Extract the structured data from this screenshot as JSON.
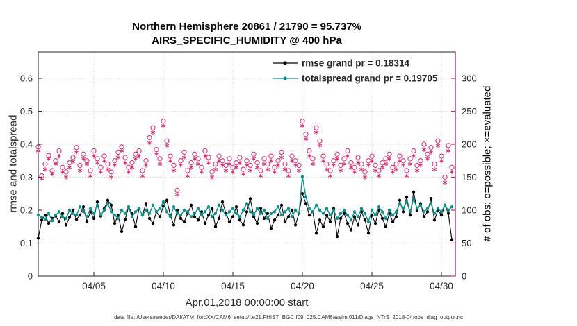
{
  "title": {
    "line1": "Northern Hemisphere 20861 / 21790 = 95.737%",
    "line2": "AIRS_SPECIFIC_HUMIDITY @ 400 hPa"
  },
  "footer": {
    "data_file": "data file: /Users/raeder/DAI/ATM_forcXX/CAM6_setup/f.e21.FHIST_BGC.f09_025.CAM6assim.011/Diags_NTrS_2018-04/obs_diag_output.nc"
  },
  "colors": {
    "obs_pink": "#d02670",
    "spread_teal": "#0f8f8a",
    "rmse_black": "#000000",
    "legend_rmse_text": "#0000ee",
    "grid": "#d8d8d8",
    "axis": "#262626"
  },
  "chart_data": {
    "type": "line",
    "title": "Northern Hemisphere 20861 / 21790 = 95.737%",
    "subtitle": "AIRS_SPECIFIC_HUMIDITY @ 400 hPa",
    "xlabel": "Apr.01,2018 00:00:00 start",
    "ylabel_left": "rmse and totalspread",
    "ylabel_right": "# of obs: o=possible; ×=evaluated",
    "x_start": "2018-04-01 00:00",
    "x_step_hours": 6,
    "xlim_days": [
      1,
      31
    ],
    "ylim_left": [
      0,
      0.68
    ],
    "ylim_right": [
      0,
      340
    ],
    "grid": true,
    "x_tick_days": [
      5,
      10,
      15,
      20,
      25,
      30
    ],
    "x_tick_labels": [
      "04/05",
      "04/10",
      "04/15",
      "04/20",
      "04/25",
      "04/30"
    ],
    "y_left_ticks": [
      0,
      0.1,
      0.2,
      0.3,
      0.4,
      0.5,
      0.6
    ],
    "y_right_ticks": [
      0,
      50,
      100,
      150,
      200,
      250,
      300
    ],
    "legend": [
      {
        "label": "rmse grand pr = 0.18314",
        "text_color": "#0000ee",
        "line_color": "#000000"
      },
      {
        "label": "totalspread grand pr = 0.19705",
        "text_color": "#0f8f8a",
        "line_color": "#0f8f8a"
      }
    ],
    "series": [
      {
        "name": "rmse",
        "axis": "left",
        "color": "#000000",
        "marker": "dot",
        "values": [
          0.115,
          0.17,
          0.185,
          0.16,
          0.175,
          0.182,
          0.165,
          0.19,
          0.155,
          0.178,
          0.2,
          0.172,
          0.185,
          0.21,
          0.165,
          0.195,
          0.175,
          0.225,
          0.182,
          0.205,
          0.23,
          0.215,
          0.16,
          0.185,
          0.135,
          0.172,
          0.21,
          0.19,
          0.15,
          0.205,
          0.185,
          0.22,
          0.175,
          0.16,
          0.195,
          0.18,
          0.212,
          0.23,
          0.185,
          0.155,
          0.2,
          0.175,
          0.165,
          0.19,
          0.215,
          0.18,
          0.17,
          0.195,
          0.16,
          0.185,
          0.205,
          0.15,
          0.175,
          0.225,
          0.19,
          0.165,
          0.18,
          0.21,
          0.17,
          0.155,
          0.195,
          0.235,
          0.18,
          0.16,
          0.205,
          0.175,
          0.19,
          0.145,
          0.17,
          0.185,
          0.215,
          0.165,
          0.18,
          0.2,
          0.155,
          0.19,
          0.25,
          0.22,
          0.185,
          0.195,
          0.13,
          0.17,
          0.15,
          0.185,
          0.165,
          0.205,
          0.12,
          0.175,
          0.19,
          0.16,
          0.14,
          0.18,
          0.155,
          0.195,
          0.17,
          0.13,
          0.185,
          0.16,
          0.2,
          0.175,
          0.15,
          0.19,
          0.165,
          0.18,
          0.23,
          0.195,
          0.24,
          0.185,
          0.255,
          0.2,
          0.22,
          0.18,
          0.195,
          0.235,
          0.17,
          0.2,
          0.185,
          0.215,
          0.19,
          0.11
        ]
      },
      {
        "name": "totalspread",
        "axis": "left",
        "color": "#0f8f8a",
        "marker": "dot",
        "values": [
          0.185,
          0.178,
          0.172,
          0.19,
          0.168,
          0.185,
          0.195,
          0.18,
          0.175,
          0.2,
          0.19,
          0.185,
          0.21,
          0.195,
          0.18,
          0.205,
          0.19,
          0.215,
          0.185,
          0.2,
          0.22,
          0.195,
          0.185,
          0.175,
          0.2,
          0.19,
          0.21,
          0.18,
          0.195,
          0.205,
          0.185,
          0.2,
          0.19,
          0.215,
          0.195,
          0.205,
          0.225,
          0.195,
          0.18,
          0.21,
          0.19,
          0.185,
          0.2,
          0.195,
          0.18,
          0.19,
          0.205,
          0.185,
          0.195,
          0.21,
          0.18,
          0.19,
          0.215,
          0.2,
          0.185,
          0.195,
          0.205,
          0.19,
          0.18,
          0.2,
          0.22,
          0.195,
          0.185,
          0.205,
          0.19,
          0.2,
          0.175,
          0.19,
          0.195,
          0.21,
          0.185,
          0.195,
          0.205,
          0.18,
          0.2,
          0.19,
          0.302,
          0.24,
          0.205,
          0.195,
          0.215,
          0.2,
          0.19,
          0.205,
          0.185,
          0.2,
          0.175,
          0.19,
          0.2,
          0.185,
          0.17,
          0.195,
          0.18,
          0.205,
          0.19,
          0.165,
          0.2,
          0.185,
          0.21,
          0.195,
          0.175,
          0.2,
          0.185,
          0.195,
          0.22,
          0.205,
          0.225,
          0.195,
          0.235,
          0.205,
          0.215,
          0.195,
          0.205,
          0.22,
          0.19,
          0.205,
          0.195,
          0.215,
          0.2,
          0.21
        ]
      },
      {
        "name": "N possible",
        "axis": "right",
        "color": "#d02670",
        "marker": "o",
        "values": [
          196,
          152,
          170,
          183,
          160,
          175,
          190,
          165,
          158,
          172,
          180,
          195,
          168,
          185,
          175,
          160,
          190,
          178,
          165,
          182,
          170,
          158,
          175,
          188,
          196,
          180,
          165,
          172,
          185,
          190,
          160,
          175,
          210,
          225,
          192,
          178,
          235,
          205,
          182,
          168,
          130,
          175,
          188,
          160,
          172,
          185,
          178,
          165,
          190,
          180,
          158,
          170,
          182,
          175,
          168,
          178,
          165,
          172,
          180,
          162,
          175,
          168,
          185,
          172,
          160,
          178,
          170,
          182,
          165,
          175,
          188,
          170,
          160,
          182,
          175,
          168,
          235,
          215,
          190,
          178,
          225,
          205,
          182,
          170,
          160,
          175,
          185,
          168,
          178,
          190,
          172,
          165,
          180,
          170,
          158,
          175,
          182,
          168,
          160,
          172,
          178,
          185,
          165,
          170,
          182,
          175,
          160,
          178,
          190,
          168,
          175,
          200,
          185,
          195,
          170,
          205,
          182,
          150,
          198,
          165
        ]
      },
      {
        "name": "N evaluated",
        "axis": "right",
        "color": "#d02670",
        "marker": "*",
        "values": [
          190,
          148,
          162,
          178,
          155,
          170,
          182,
          158,
          150,
          165,
          174,
          188,
          160,
          178,
          170,
          152,
          182,
          172,
          158,
          175,
          162,
          150,
          168,
          180,
          190,
          172,
          158,
          165,
          178,
          182,
          152,
          168,
          202,
          218,
          185,
          170,
          228,
          198,
          175,
          160,
          124,
          168,
          180,
          152,
          165,
          178,
          170,
          158,
          182,
          172,
          150,
          162,
          175,
          168,
          160,
          170,
          158,
          165,
          172,
          155,
          168,
          160,
          178,
          165,
          152,
          170,
          162,
          175,
          158,
          168,
          180,
          162,
          152,
          175,
          168,
          160,
          228,
          208,
          182,
          170,
          218,
          198,
          175,
          162,
          152,
          168,
          178,
          160,
          170,
          182,
          165,
          158,
          172,
          162,
          150,
          168,
          175,
          160,
          152,
          165,
          170,
          178,
          158,
          162,
          175,
          168,
          152,
          170,
          182,
          160,
          168,
          192,
          178,
          188,
          162,
          198,
          175,
          142,
          190,
          158
        ]
      }
    ]
  }
}
